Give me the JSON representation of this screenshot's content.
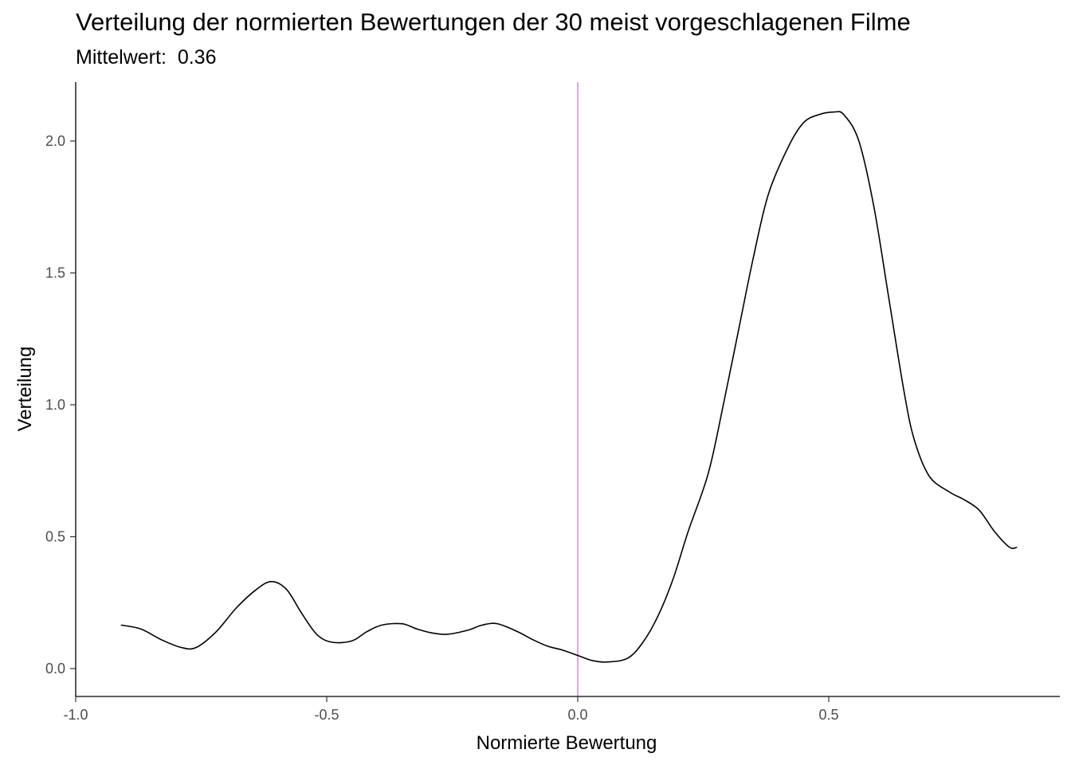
{
  "chart_data": {
    "type": "line",
    "title": "Verteilung der normierten Bewertungen der 30 meist vorgeschlagenen Filme",
    "subtitle_label": "Mittelwert:",
    "subtitle_value": "0.36",
    "xlabel": "Normierte Bewertung",
    "ylabel": "Verteilung",
    "xlim": [
      -1.0,
      0.96
    ],
    "ylim": [
      -0.1,
      2.22
    ],
    "x_ticks": [
      -1.0,
      -0.5,
      0.0,
      0.5
    ],
    "x_tick_labels": [
      "-1.0",
      "-0.5",
      "0.0",
      "0.5"
    ],
    "y_ticks": [
      0.0,
      0.5,
      1.0,
      1.5,
      2.0
    ],
    "y_tick_labels": [
      "0.0",
      "0.5",
      "1.0",
      "1.5",
      "2.0"
    ],
    "grid": false,
    "reference_line": {
      "x": 0.0,
      "color": "#ee82ee"
    },
    "line_color": "#000000",
    "series": [
      {
        "x": [
          -0.91,
          -0.87,
          -0.83,
          -0.79,
          -0.76,
          -0.72,
          -0.68,
          -0.64,
          -0.61,
          -0.58,
          -0.55,
          -0.52,
          -0.49,
          -0.45,
          -0.42,
          -0.39,
          -0.35,
          -0.32,
          -0.29,
          -0.26,
          -0.22,
          -0.19,
          -0.16,
          -0.12,
          -0.09,
          -0.06,
          -0.03,
          0.0,
          0.03,
          0.06,
          0.1,
          0.13,
          0.16,
          0.19,
          0.22,
          0.26,
          0.29,
          0.32,
          0.35,
          0.38,
          0.42,
          0.45,
          0.48,
          0.51,
          0.53,
          0.56,
          0.59,
          0.62,
          0.65,
          0.67,
          0.7,
          0.74,
          0.77,
          0.8,
          0.83,
          0.86,
          0.875
        ],
        "y": [
          0.165,
          0.15,
          0.11,
          0.08,
          0.08,
          0.14,
          0.23,
          0.3,
          0.33,
          0.3,
          0.21,
          0.13,
          0.1,
          0.105,
          0.14,
          0.165,
          0.17,
          0.15,
          0.135,
          0.13,
          0.145,
          0.165,
          0.17,
          0.14,
          0.11,
          0.085,
          0.07,
          0.05,
          0.03,
          0.025,
          0.04,
          0.1,
          0.2,
          0.34,
          0.52,
          0.74,
          1.0,
          1.28,
          1.56,
          1.8,
          1.98,
          2.07,
          2.1,
          2.11,
          2.1,
          2.0,
          1.75,
          1.4,
          1.05,
          0.87,
          0.73,
          0.67,
          0.64,
          0.6,
          0.52,
          0.46,
          0.46
        ]
      }
    ]
  }
}
